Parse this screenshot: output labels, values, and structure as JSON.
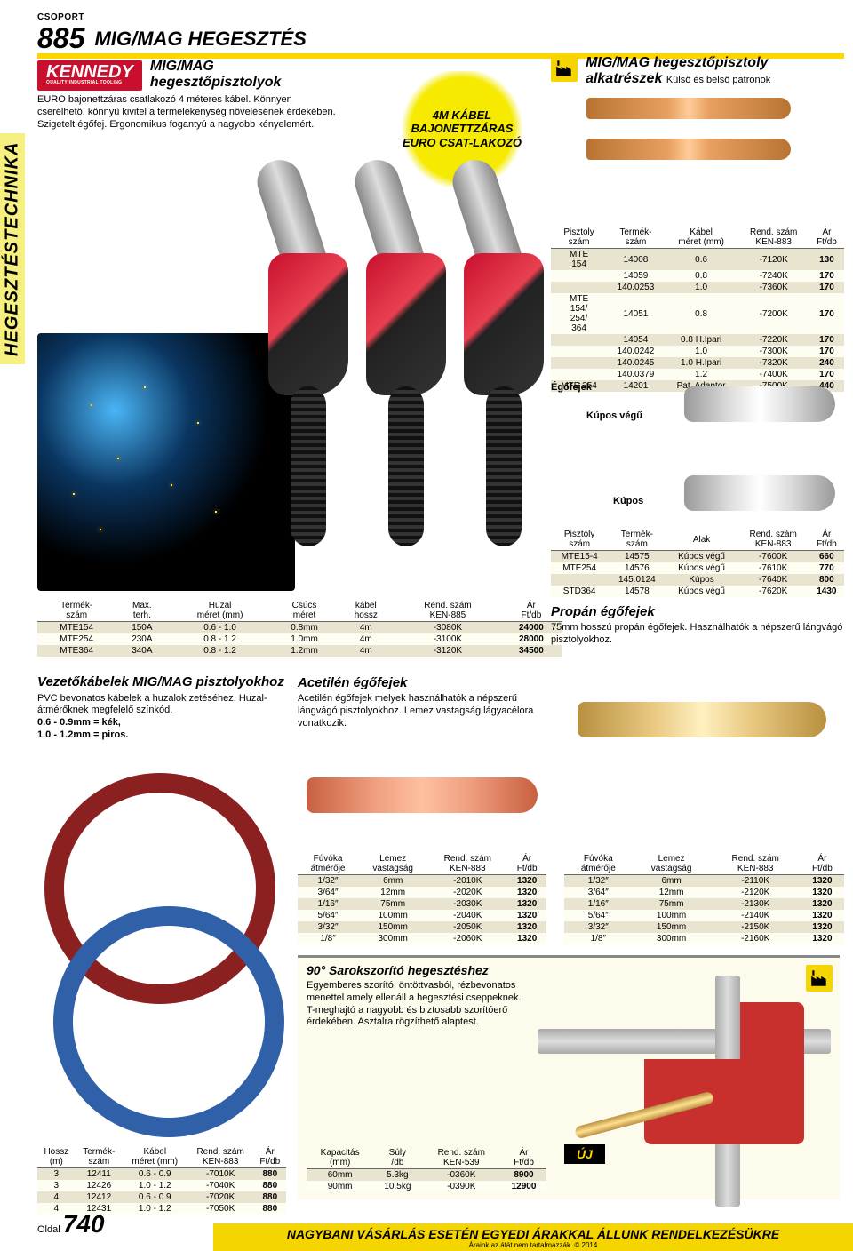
{
  "group_label": "CSOPORT",
  "group_number": "885",
  "page_title": "MIG/MAG HEGESZTÉS",
  "sidebar": "HEGESZTÉSTECHNIKA",
  "brand": {
    "name": "KENNEDY",
    "tagline": "QUALITY INDUSTRIAL TOOLING"
  },
  "torches": {
    "title1": "MIG/MAG",
    "title2": "hegesztőpisztolyok",
    "desc": "EURO bajonettzáras csatlakozó 4 méteres kábel. Könnyen cserélhető, könnyű kivitel a termelékenység növelésének érdekében. Szigetelt égőfej. Ergonomikus fogantyú a nagyobb kényelemért.",
    "callout": "4M KÁBEL BAJONETTZÁRAS EURO CSAT-LAKOZÓ",
    "headers": [
      "Termék-\nszám",
      "Max.\nterh.",
      "Huzal\nméret (mm)",
      "Csúcs\nméret",
      "kábel\nhossz",
      "Rend. szám\nKEN-885",
      "Ár\nFt/db"
    ],
    "rows": [
      [
        "MTE154",
        "150A",
        "0.6 - 1.0",
        "0.8mm",
        "4m",
        "-3080K",
        "24000"
      ],
      [
        "MTE254",
        "230A",
        "0.8 - 1.2",
        "1.0mm",
        "4m",
        "-3100K",
        "28000"
      ],
      [
        "MTE364",
        "340A",
        "0.8 - 1.2",
        "1.2mm",
        "4m",
        "-3120K",
        "34500"
      ]
    ]
  },
  "spares": {
    "title": "MIG/MAG hegesztőpisztoly alkatrészek",
    "subtitle": "Külső és belső patronok",
    "tips_headers": [
      "Pisztoly\nszám",
      "Termék-\nszám",
      "Kábel\nméret (mm)",
      "Rend. szám\nKEN-883",
      "Ár\nFt/db"
    ],
    "tips_rows": [
      [
        "MTE\n154",
        "14008",
        "0.6",
        "-7120K",
        "130"
      ],
      [
        "",
        "14059",
        "0.8",
        "-7240K",
        "170"
      ],
      [
        "",
        "140.0253",
        "1.0",
        "-7360K",
        "170"
      ],
      [
        "MTE\n154/\n254/\n364",
        "14051",
        "0.8",
        "-7200K",
        "170"
      ],
      [
        "",
        "14054",
        "0.8 H.Ipari",
        "-7220K",
        "170"
      ],
      [
        "",
        "140.0242",
        "1.0",
        "-7300K",
        "170"
      ],
      [
        "",
        "140.0245",
        "1.0 H.Ipari",
        "-7320K",
        "240"
      ],
      [
        "",
        "140.0379",
        "1.2",
        "-7400K",
        "170"
      ],
      [
        "MTE 254",
        "14201",
        "Pat. Adaptor",
        "-7500K",
        "440"
      ]
    ],
    "nozzles_label": "Égőfejek",
    "conical_end": "Kúpos végű",
    "conical": "Kúpos",
    "noz_headers": [
      "Pisztoly\nszám",
      "Termék-\nszám",
      "Alak",
      "Rend. szám\nKEN-883",
      "Ár\nFt/db"
    ],
    "noz_rows": [
      [
        "MTE15-4",
        "14575",
        "Kúpos végű",
        "-7600K",
        "660"
      ],
      [
        "MTE254",
        "14576",
        "Kúpos végű",
        "-7610K",
        "770"
      ],
      [
        "",
        "145.0124",
        "Kúpos",
        "-7640K",
        "800"
      ],
      [
        "STD364",
        "14578",
        "Kúpos végű",
        "-7620K",
        "1430"
      ]
    ]
  },
  "liners": {
    "title": "Vezetőkábelek MIG/MAG pisztolyokhoz",
    "desc": "PVC bevonatos kábelek a huzalok zetéséhez. Huzal-átmérőknek megfelelő színkód.",
    "colors": "0.6 - 0.9mm = kék,\n1.0 - 1.2mm = piros.",
    "headers": [
      "Hossz\n(m)",
      "Termék-\nszám",
      "Kábel\nméret (mm)",
      "Rend. szám\nKEN-883",
      "Ár\nFt/db"
    ],
    "rows": [
      [
        "3",
        "12411",
        "0.6 - 0.9",
        "-7010K",
        "880"
      ],
      [
        "3",
        "12426",
        "1.0 - 1.2",
        "-7040K",
        "880"
      ],
      [
        "4",
        "12412",
        "0.6 - 0.9",
        "-7020K",
        "880"
      ],
      [
        "4",
        "12431",
        "1.0 - 1.2",
        "-7050K",
        "880"
      ]
    ]
  },
  "acet": {
    "title": "Acetilén égőfejek",
    "desc": "Acetilén égőfejek melyek használhatók a népszerű lángvágó pisztolyokhoz. Lemez vastagság lágyacélora vonatkozik.",
    "headers": [
      "Fúvóka\nátmérője",
      "Lemez\nvastagság",
      "Rend. szám\nKEN-883",
      "Ár\nFt/db"
    ],
    "rows": [
      [
        "1/32″",
        "6mm",
        "-2010K",
        "1320"
      ],
      [
        "3/64″",
        "12mm",
        "-2020K",
        "1320"
      ],
      [
        "1/16″",
        "75mm",
        "-2030K",
        "1320"
      ],
      [
        "5/64″",
        "100mm",
        "-2040K",
        "1320"
      ],
      [
        "3/32″",
        "150mm",
        "-2050K",
        "1320"
      ],
      [
        "1/8″",
        "300mm",
        "-2060K",
        "1320"
      ]
    ]
  },
  "propane": {
    "title": "Propán égőfejek",
    "desc": "75mm hosszú propán égőfejek. Használhatók a népszerű lángvágó pisztolyokhoz.",
    "headers": [
      "Fúvóka\nátmérője",
      "Lemez\nvastagság",
      "Rend. szám\nKEN-883",
      "Ár\nFt/db"
    ],
    "rows": [
      [
        "1/32″",
        "6mm",
        "-2110K",
        "1320"
      ],
      [
        "3/64″",
        "12mm",
        "-2120K",
        "1320"
      ],
      [
        "1/16″",
        "75mm",
        "-2130K",
        "1320"
      ],
      [
        "5/64″",
        "100mm",
        "-2140K",
        "1320"
      ],
      [
        "3/32″",
        "150mm",
        "-2150K",
        "1320"
      ],
      [
        "1/8″",
        "300mm",
        "-2160K",
        "1320"
      ]
    ]
  },
  "corner": {
    "title": "90° Sarokszorító hegesztéshez",
    "desc": "Egyemberes szorító, öntöttvasból, rézbevonatos menettel amely ellenáll a hegesztési cseppeknek. T-meghajtó a nagyobb és biztosabb szorítóerő érdekében. Asztalra rögzíthető alaptest.",
    "uj": "ÚJ",
    "headers": [
      "Kapacitás\n(mm)",
      "Súly\n/db",
      "Rend. szám\nKEN-539",
      "Ár\nFt/db"
    ],
    "rows": [
      [
        "60mm",
        "5.3kg",
        "-0360K",
        "8900"
      ],
      [
        "90mm",
        "10.5kg",
        "-0390K",
        "12900"
      ]
    ]
  },
  "footer": {
    "msg": "NAGYBANI VÁSÁRLÁS ESETÉN EGYEDI ÁRAKKAL ÁLLUNK RENDELKEZÉSÜKRE",
    "sub": "Áraink az áfát nem tartalmazzák. © 2014",
    "oldal": "Oldal",
    "page": "740"
  },
  "colors": {
    "yellow": "#f5d500",
    "red": "#c8102e",
    "copper": "#b87333"
  }
}
